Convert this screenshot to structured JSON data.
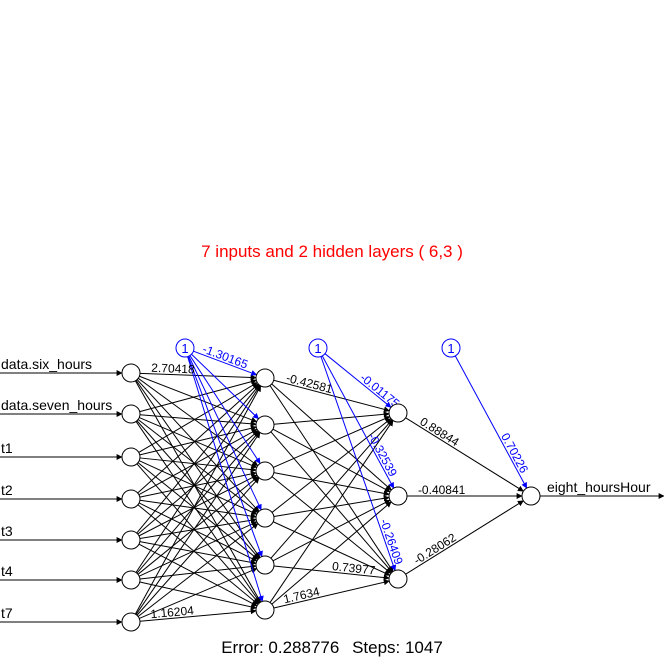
{
  "title": "7 inputs and 2 hidden layers ( 6,3 )",
  "footer": {
    "error_label": "Error: 0.288776",
    "steps_label": "Steps: 1047"
  },
  "colors": {
    "title": "#ff0000",
    "weights": "#000000",
    "bias": "#0000ff"
  },
  "network": {
    "inputs": [
      "data.six_hours",
      "data.seven_hours",
      "t1",
      "t2",
      "t3",
      "t4",
      "t7"
    ],
    "hidden1_size": 6,
    "hidden2_size": 3,
    "output": "eight_hoursHour",
    "bias_node_label": "1",
    "visible_weight_labels": {
      "input_to_h1": [
        "2.70418",
        "1.16204"
      ],
      "h1_to_h2": [
        "-0.42581",
        "0.73977",
        "1.7634"
      ],
      "h2_to_output": [
        "0.88844",
        "-0.40841",
        "-0.28062"
      ],
      "bias_h1": [
        "-1.30165"
      ],
      "bias_h2": [
        "-0.01175",
        "-0.32539",
        "-0.26409"
      ],
      "bias_output": "0.70226"
    }
  }
}
